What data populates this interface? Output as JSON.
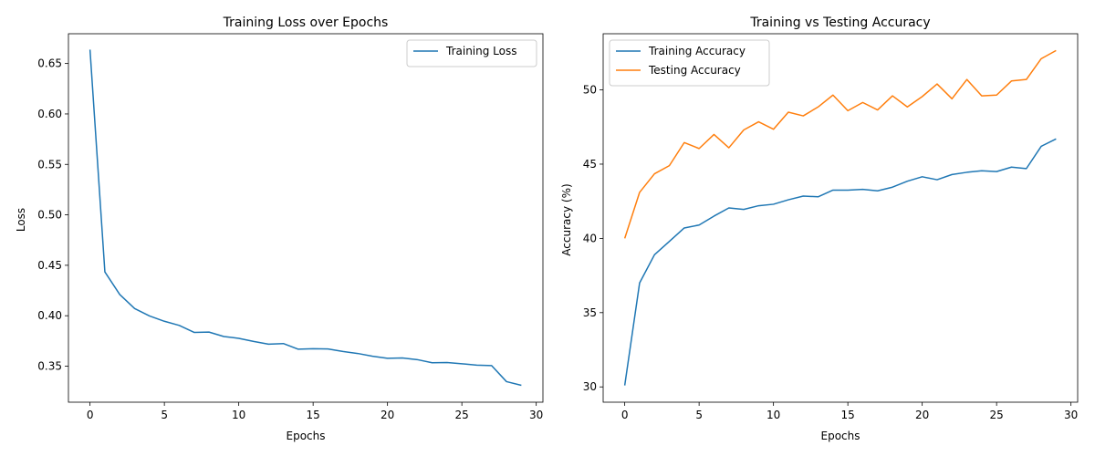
{
  "chart_data": [
    {
      "type": "line",
      "title": "Training Loss over Epochs",
      "xlabel": "Epochs",
      "ylabel": "Loss",
      "xlim": [
        -1.45,
        30.45
      ],
      "ylim": [
        0.3143,
        0.6795
      ],
      "xticks": [
        0,
        5,
        10,
        15,
        20,
        25,
        30
      ],
      "xtick_labels": [
        "0",
        "5",
        "10",
        "15",
        "20",
        "25",
        "30"
      ],
      "yticks": [
        0.35,
        0.4,
        0.45,
        0.5,
        0.55,
        0.6,
        0.65
      ],
      "ytick_labels": [
        "0.35",
        "0.40",
        "0.45",
        "0.50",
        "0.55",
        "0.60",
        "0.65"
      ],
      "grid": false,
      "legend_position": "top-right",
      "x": [
        0,
        1,
        2,
        3,
        4,
        5,
        6,
        7,
        8,
        9,
        10,
        11,
        12,
        13,
        14,
        15,
        16,
        17,
        18,
        19,
        20,
        21,
        22,
        23,
        24,
        25,
        26,
        27,
        28,
        29
      ],
      "series": [
        {
          "name": "Training Loss",
          "color": "#1f77b4",
          "values": [
            0.6637,
            0.4434,
            0.421,
            0.4071,
            0.3998,
            0.3945,
            0.3904,
            0.3835,
            0.3838,
            0.3794,
            0.3776,
            0.3745,
            0.3718,
            0.3724,
            0.3668,
            0.3673,
            0.3671,
            0.3646,
            0.3626,
            0.3598,
            0.3578,
            0.3581,
            0.3565,
            0.3534,
            0.3536,
            0.3524,
            0.351,
            0.3506,
            0.3347,
            0.331
          ]
        }
      ]
    },
    {
      "type": "line",
      "title": "Training vs Testing Accuracy",
      "xlabel": "Epochs",
      "ylabel": "Accuracy (%)",
      "xlim": [
        -1.45,
        30.45
      ],
      "ylim": [
        28.97,
        53.78
      ],
      "xticks": [
        0,
        5,
        10,
        15,
        20,
        25,
        30
      ],
      "xtick_labels": [
        "0",
        "5",
        "10",
        "15",
        "20",
        "25",
        "30"
      ],
      "yticks": [
        30,
        35,
        40,
        45,
        50
      ],
      "ytick_labels": [
        "30",
        "35",
        "40",
        "45",
        "50"
      ],
      "grid": false,
      "legend_position": "top-left",
      "x": [
        0,
        1,
        2,
        3,
        4,
        5,
        6,
        7,
        8,
        9,
        10,
        11,
        12,
        13,
        14,
        15,
        16,
        17,
        18,
        19,
        20,
        21,
        22,
        23,
        24,
        25,
        26,
        27,
        28,
        29
      ],
      "series": [
        {
          "name": "Training Accuracy",
          "color": "#1f77b4",
          "values": [
            30.1,
            37.0,
            38.9,
            39.8,
            40.7,
            40.9,
            41.5,
            42.05,
            41.95,
            42.2,
            42.3,
            42.6,
            42.85,
            42.8,
            43.25,
            43.25,
            43.3,
            43.2,
            43.45,
            43.85,
            44.15,
            43.95,
            44.3,
            44.45,
            44.55,
            44.5,
            44.8,
            44.7,
            46.2,
            46.7
          ]
        },
        {
          "name": "Testing Accuracy",
          "color": "#ff7f0e",
          "values": [
            40.0,
            43.1,
            44.35,
            44.9,
            46.45,
            46.05,
            47.0,
            46.1,
            47.3,
            47.85,
            47.35,
            48.5,
            48.25,
            48.85,
            49.65,
            48.6,
            49.15,
            48.65,
            49.6,
            48.85,
            49.55,
            50.4,
            49.4,
            50.7,
            49.6,
            49.65,
            50.6,
            50.7,
            52.1,
            52.65
          ]
        }
      ]
    }
  ]
}
